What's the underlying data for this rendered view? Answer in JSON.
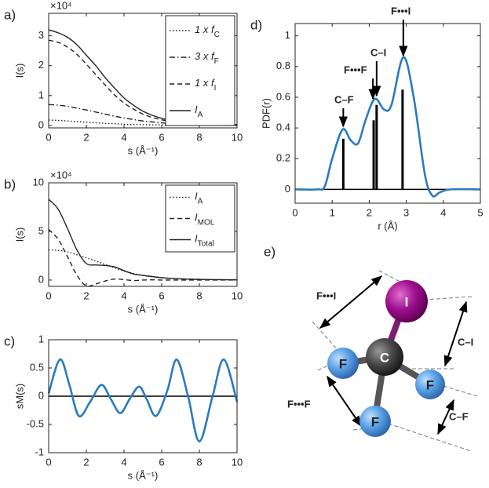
{
  "chart_data": [
    {
      "type": "line",
      "panel_label": "a)",
      "multiplier": "×10⁴",
      "ylabel": "I(s)",
      "xlabel": "s (Å⁻¹)",
      "xlim": [
        0,
        10
      ],
      "ylim": [
        -0.08,
        3.75
      ],
      "xticks": [
        0,
        2,
        4,
        6,
        8,
        10
      ],
      "yticks": [
        0,
        1,
        2,
        3
      ],
      "legend": "upper-right",
      "x": [
        0,
        0.5,
        1,
        1.5,
        2,
        2.5,
        3,
        3.5,
        4,
        4.5,
        5,
        5.5,
        6,
        6.5,
        7,
        7.5,
        8,
        8.5,
        9,
        9.5,
        10
      ],
      "series": [
        {
          "name": "1 x f",
          "subscript": "C",
          "line_style": "dotted",
          "color": "#222222",
          "values": [
            0.18,
            0.17,
            0.15,
            0.13,
            0.11,
            0.09,
            0.07,
            0.06,
            0.04,
            0.03,
            0.03,
            0.02,
            0.02,
            0.01,
            0.01,
            0.01,
            0.01,
            0.01,
            0,
            0,
            0
          ]
        },
        {
          "name": "3 x f",
          "subscript": "F",
          "line_style": "dash-dot",
          "color": "#222222",
          "values": [
            0.7,
            0.68,
            0.64,
            0.58,
            0.52,
            0.45,
            0.38,
            0.31,
            0.25,
            0.2,
            0.15,
            0.12,
            0.09,
            0.07,
            0.05,
            0.04,
            0.03,
            0.03,
            0.02,
            0.02,
            0.01
          ]
        },
        {
          "name": "1 x f",
          "subscript": "I",
          "line_style": "dashed",
          "color": "#222222",
          "values": [
            2.85,
            2.78,
            2.62,
            2.38,
            2.05,
            1.7,
            1.35,
            1.02,
            0.75,
            0.55,
            0.38,
            0.27,
            0.19,
            0.13,
            0.09,
            0.07,
            0.05,
            0.04,
            0.03,
            0.03,
            0.02
          ]
        },
        {
          "name": "I",
          "subscript": "A",
          "line_style": "solid",
          "color": "#222222",
          "values": [
            3.2,
            3.1,
            2.95,
            2.7,
            2.35,
            2.0,
            1.6,
            1.25,
            0.92,
            0.68,
            0.48,
            0.34,
            0.24,
            0.17,
            0.12,
            0.09,
            0.07,
            0.05,
            0.04,
            0.03,
            0.03
          ]
        }
      ]
    },
    {
      "type": "line",
      "panel_label": "b)",
      "multiplier": "×10⁴",
      "ylabel": "I(s)",
      "xlabel": "s (Å⁻¹)",
      "xlim": [
        0,
        10
      ],
      "ylim": [
        -0.65,
        10
      ],
      "xticks": [
        0,
        2,
        4,
        6,
        8,
        10
      ],
      "yticks": [
        0,
        5,
        10
      ],
      "legend": "upper-right",
      "x": [
        0,
        0.5,
        1,
        1.5,
        2,
        2.5,
        3,
        3.5,
        4,
        4.5,
        5,
        5.5,
        6,
        6.5,
        7,
        7.5,
        8,
        8.5,
        9,
        9.5,
        10
      ],
      "series": [
        {
          "name": "I",
          "subscript": "A",
          "line_style": "dotted",
          "color": "#222222",
          "values": [
            3.1,
            3.05,
            2.9,
            2.6,
            2.3,
            1.95,
            1.6,
            1.25,
            0.92,
            0.68,
            0.48,
            0.34,
            0.24,
            0.17,
            0.12,
            0.09,
            0.07,
            0.05,
            0.04,
            0.03,
            0.03
          ]
        },
        {
          "name": "I",
          "subscript": "MOL",
          "line_style": "dashed",
          "color": "#222222",
          "values": [
            5.2,
            4.2,
            2.4,
            0.5,
            -0.6,
            -0.4,
            -0.1,
            0.1,
            0.05,
            -0.05,
            0,
            0.02,
            0,
            0,
            0,
            0,
            0,
            0,
            0,
            0,
            0
          ]
        },
        {
          "name": "I",
          "subscript": "Total",
          "line_style": "solid",
          "color": "#222222",
          "values": [
            8.3,
            7.3,
            5.3,
            3.1,
            1.7,
            1.55,
            1.5,
            1.35,
            0.97,
            0.63,
            0.48,
            0.36,
            0.24,
            0.17,
            0.12,
            0.09,
            0.07,
            0.05,
            0.04,
            0.03,
            0.03
          ]
        }
      ]
    },
    {
      "type": "line",
      "panel_label": "c)",
      "ylabel": "sM(s)",
      "xlabel": "s (Å⁻¹)",
      "zero_line": true,
      "xlim": [
        0,
        10
      ],
      "ylim": [
        -1,
        1
      ],
      "xticks": [
        0,
        2,
        4,
        6,
        8,
        10
      ],
      "yticks": [
        -1,
        -0.5,
        0,
        0.5,
        1
      ],
      "x": [
        0,
        0.6,
        1.1,
        1.6,
        2.2,
        2.8,
        3.3,
        3.8,
        4.3,
        4.8,
        5.2,
        5.7,
        6.3,
        6.8,
        7.4,
        8.0,
        8.7,
        9.3,
        10
      ],
      "series": [
        {
          "line_style": "solid",
          "color": "#2b7bbd",
          "values": [
            0.05,
            0.65,
            0.2,
            -0.35,
            -0.1,
            0.2,
            -0.05,
            -0.3,
            -0.05,
            0.17,
            -0.05,
            -0.35,
            0.1,
            0.65,
            0,
            -0.8,
            0,
            0.65,
            -0.1
          ]
        }
      ]
    },
    {
      "type": "line",
      "panel_label": "d)",
      "ylabel": "PDF(r)",
      "xlabel": "r (Å)",
      "zero_line": true,
      "xlim": [
        0,
        5
      ],
      "ylim": [
        -0.09,
        1.08
      ],
      "xticks": [
        0,
        1,
        2,
        3,
        4,
        5
      ],
      "yticks": [
        0,
        0.2,
        0.4,
        0.6,
        0.8,
        1
      ],
      "x": [
        0,
        0.6,
        0.8,
        1.0,
        1.28,
        1.5,
        1.7,
        1.9,
        2.15,
        2.4,
        2.6,
        2.92,
        3.2,
        3.5,
        3.7,
        3.9,
        4.2,
        5
      ],
      "series": [
        {
          "line_style": "solid",
          "color": "#2b7bbd",
          "values": [
            0,
            0,
            0.02,
            0.2,
            0.39,
            0.32,
            0.3,
            0.45,
            0.59,
            0.52,
            0.55,
            0.86,
            0.6,
            0.1,
            -0.04,
            -0.02,
            0,
            0
          ]
        }
      ],
      "sticks": {
        "color": "#000000",
        "x": [
          1.3,
          2.12,
          2.2,
          2.9
        ],
        "values": [
          0.33,
          0.45,
          0.55,
          0.65
        ]
      },
      "annotations": [
        "C–F",
        "F•••F",
        "C–I",
        "F•••I"
      ]
    }
  ],
  "diagram": {
    "panel_label": "e)",
    "atoms": [
      "I",
      "C",
      "F",
      "F",
      "F"
    ],
    "distances": [
      "F•••I",
      "C–I",
      "F•••F",
      "C–F"
    ]
  }
}
